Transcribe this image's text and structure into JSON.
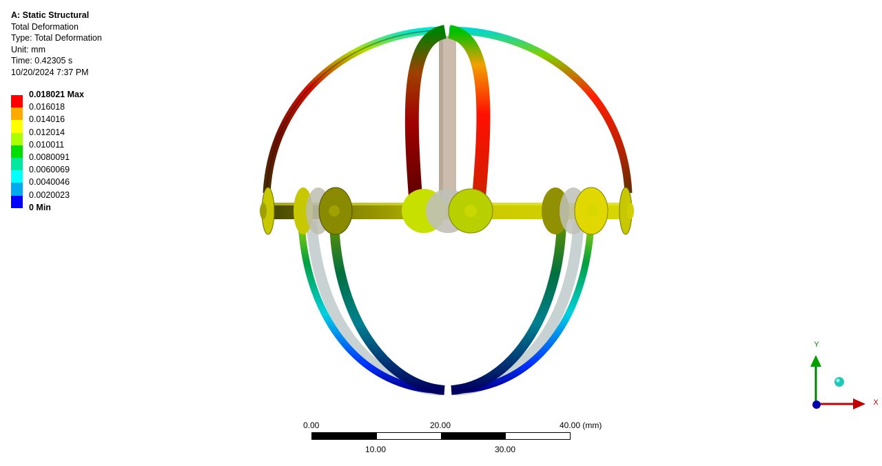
{
  "info": {
    "title": "A: Static Structural",
    "result_name": "Total Deformation",
    "type": "Type: Total Deformation",
    "unit": "Unit: mm",
    "time": "Time: 0.42305 s",
    "timestamp": "10/20/2024 7:37 PM"
  },
  "legend": {
    "entries": [
      {
        "label": "0.018021 Max",
        "color": "#ff0000",
        "bold": true
      },
      {
        "label": "0.016018",
        "color": "#ffaa00",
        "bold": false
      },
      {
        "label": "0.014016",
        "color": "#ffff00",
        "bold": false
      },
      {
        "label": "0.012014",
        "color": "#aaff00",
        "bold": false
      },
      {
        "label": "0.010011",
        "color": "#00dd00",
        "bold": false
      },
      {
        "label": "0.0080091",
        "color": "#00e8a0",
        "bold": false
      },
      {
        "label": "0.0060069",
        "color": "#00ffff",
        "bold": false
      },
      {
        "label": "0.0040046",
        "color": "#00aaee",
        "bold": false
      },
      {
        "label": "0.0020023",
        "color": "#0000ff",
        "bold": false
      },
      {
        "label": "0 Min",
        "color": null,
        "bold": true
      }
    ]
  },
  "scale_bar": {
    "top_labels": [
      "0.00",
      "20.00",
      "40.00 (mm)"
    ],
    "bottom_labels": [
      "10.00",
      "30.00"
    ]
  },
  "triad": {
    "x_label": "X",
    "y_label": "Y",
    "x_color": "#c00000",
    "y_color": "#008000"
  }
}
